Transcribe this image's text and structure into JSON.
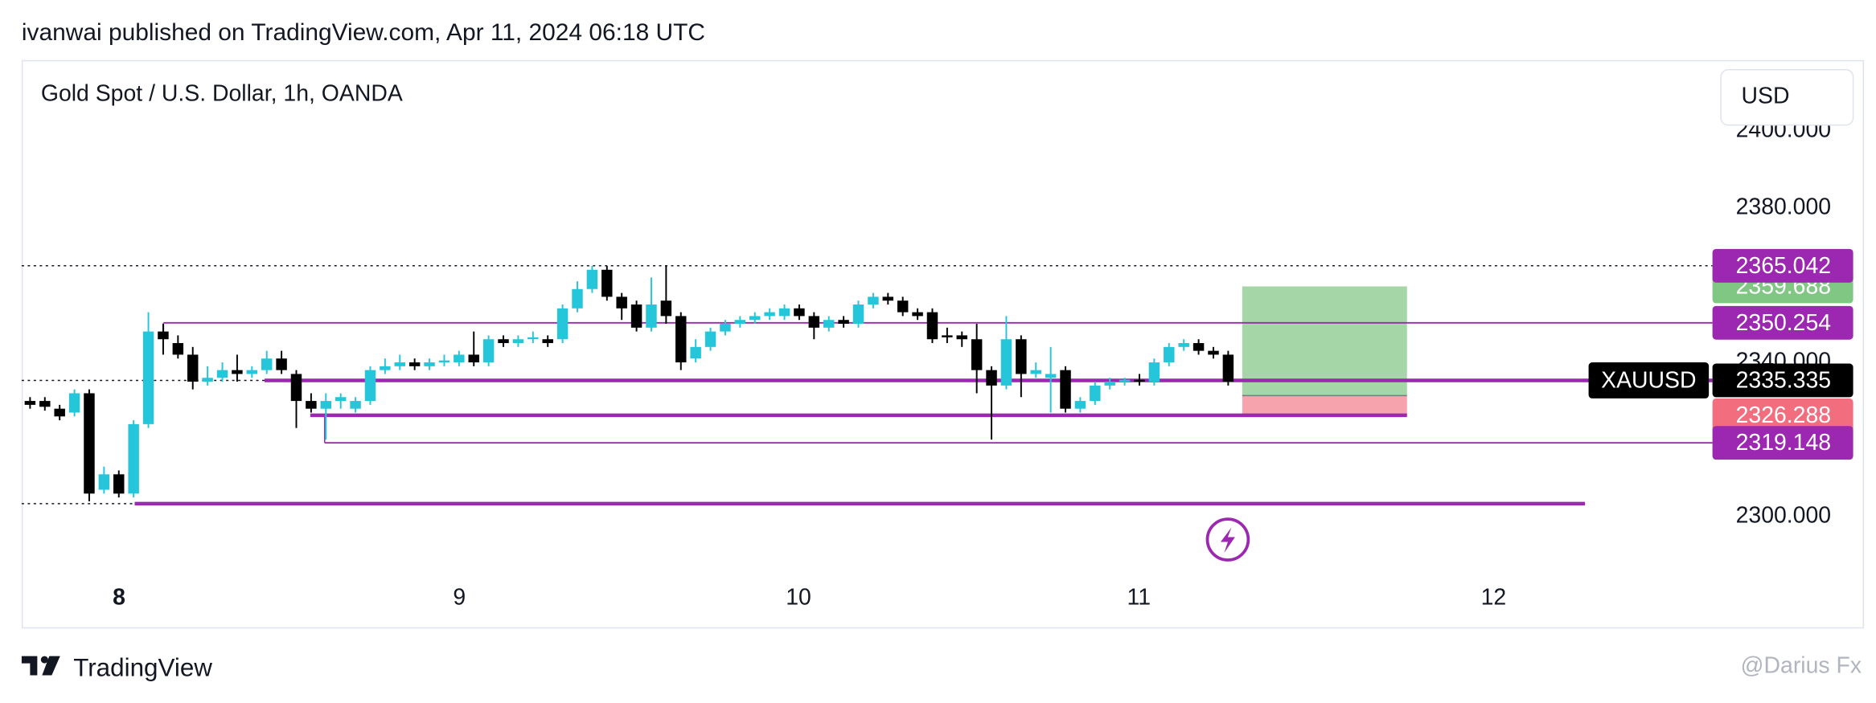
{
  "header": {
    "publisher": "ivanwai published on TradingView.com, Apr 11, 2024 06:18 UTC"
  },
  "footer": {
    "brand": "TradingView",
    "watermark": "@Darius Fx"
  },
  "chart_data": {
    "type": "candlestick",
    "title": "Gold Spot / U.S. Dollar, 1h, OANDA",
    "currency": "USD",
    "symbol": "XAUUSD",
    "up_color": "#26c6da",
    "down_color": "#000000",
    "x_labels": [
      "8",
      "9",
      "10",
      "11",
      "12"
    ],
    "ylim": [
      2286,
      2417.7
    ],
    "yticks": [
      {
        "value": 2300,
        "label": "2300.000"
      },
      {
        "value": 2340,
        "label": "2340.000"
      },
      {
        "value": 2380,
        "label": "2380.000"
      },
      {
        "value": 2400,
        "label": "2400.000"
      }
    ],
    "open": [
      2330,
      2330,
      2328,
      2327,
      2332,
      2307,
      2311,
      2306,
      2324,
      2348,
      2345,
      2342,
      2335,
      2336,
      2338,
      2337,
      2338,
      2341,
      2337,
      2330,
      2328,
      2330,
      2328,
      2330,
      2338,
      2339,
      2340,
      2339,
      2340,
      2340,
      2342,
      2340,
      2346,
      2345,
      2346,
      2346,
      2346,
      2354,
      2359,
      2364,
      2357,
      2355,
      2349,
      2356,
      2352,
      2341,
      2344,
      2348,
      2350,
      2351,
      2352,
      2352,
      2354,
      2352,
      2349,
      2351,
      2350,
      2355,
      2357,
      2356,
      2353,
      2353,
      2347,
      2347,
      2346,
      2338,
      2334,
      2346,
      2337,
      2336,
      2338,
      2328,
      2330,
      2334,
      2335,
      2335.5,
      2335,
      2340,
      2344,
      2345,
      2343,
      2342
    ],
    "high": [
      2331,
      2331,
      2329,
      2333,
      2333,
      2313,
      2312,
      2325,
      2353,
      2350,
      2347,
      2344,
      2339,
      2340,
      2342,
      2339,
      2343,
      2343,
      2338,
      2332,
      2332,
      2332,
      2331,
      2339,
      2341,
      2342,
      2341,
      2341,
      2342,
      2343,
      2348,
      2347,
      2347,
      2347,
      2348,
      2347,
      2355,
      2361,
      2365,
      2365,
      2358,
      2356,
      2362,
      2365,
      2353,
      2346,
      2349,
      2351,
      2352,
      2353,
      2354,
      2355,
      2355,
      2353,
      2352,
      2352,
      2356,
      2358,
      2358,
      2357,
      2354,
      2354,
      2349,
      2348,
      2350,
      2339,
      2352,
      2347,
      2340,
      2344,
      2339,
      2331,
      2335,
      2336,
      2336,
      2337,
      2341,
      2345,
      2346,
      2346,
      2344,
      2343
    ],
    "low": [
      2328,
      2327.5,
      2325,
      2326,
      2304,
      2306,
      2305,
      2305,
      2323,
      2342,
      2341,
      2333,
      2334,
      2335,
      2335,
      2336,
      2337,
      2337,
      2323,
      2327,
      2320,
      2328,
      2327,
      2329,
      2337,
      2338,
      2338,
      2338,
      2339,
      2339,
      2339,
      2339,
      2344,
      2344,
      2345,
      2344,
      2345,
      2353,
      2358,
      2356,
      2351,
      2348,
      2348,
      2350,
      2338,
      2340,
      2343,
      2347,
      2349,
      2350,
      2351,
      2351,
      2351,
      2346,
      2348,
      2349,
      2349,
      2354,
      2355,
      2352,
      2351,
      2345,
      2345,
      2344,
      2332,
      2320,
      2333,
      2331,
      2336,
      2327,
      2327,
      2327,
      2329,
      2333,
      2334,
      2334,
      2334,
      2339,
      2343,
      2342,
      2341,
      2334
    ],
    "close": [
      2329,
      2328.5,
      2326,
      2332,
      2306,
      2311,
      2306,
      2324,
      2348,
      2346,
      2342,
      2335,
      2336,
      2338,
      2337,
      2338,
      2341,
      2338,
      2330,
      2328,
      2330,
      2331,
      2330,
      2338,
      2339,
      2340,
      2339,
      2340,
      2340.5,
      2342,
      2340,
      2346,
      2345,
      2346,
      2346.5,
      2345,
      2354,
      2359,
      2364,
      2357,
      2354,
      2349,
      2355,
      2352,
      2340,
      2344,
      2348,
      2350,
      2351,
      2352,
      2353,
      2354,
      2352,
      2349,
      2351,
      2350,
      2355,
      2357,
      2356,
      2353,
      2352,
      2346,
      2346.5,
      2346,
      2338,
      2334,
      2346,
      2337,
      2338,
      2337,
      2328,
      2330,
      2334,
      2335,
      2335.5,
      2335,
      2340,
      2344,
      2345,
      2343,
      2342,
      2335
    ],
    "levels": [
      {
        "value": 2365.042,
        "color": "#9c27b0"
      },
      {
        "value": 2350.254,
        "color": "#9c27b0"
      },
      {
        "value": 2319.148,
        "color": "#9c27b0"
      },
      {
        "value": 2303.4,
        "color": "#9c27b0"
      }
    ],
    "last_price": 2335.335,
    "line_color": "#9c27b0",
    "position": {
      "target": 2359.688,
      "entry": 2331.4,
      "stop": 2326.288,
      "profit_color": "#a5d6a7",
      "loss_color": "#f7a3ad",
      "target_color": "#81c784",
      "stop_color": "#f26d7d"
    }
  }
}
